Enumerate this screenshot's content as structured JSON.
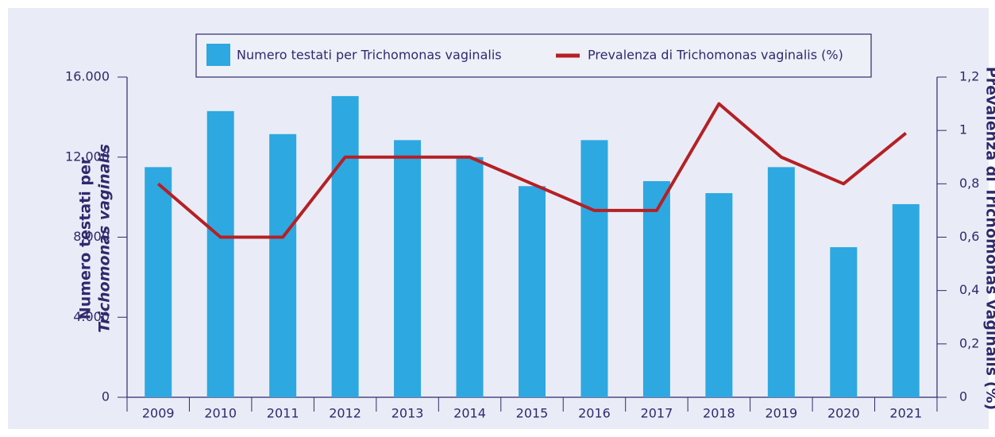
{
  "chart_data": {
    "type": "bar_line",
    "categories": [
      "2009",
      "2010",
      "2011",
      "2012",
      "2013",
      "2014",
      "2015",
      "2016",
      "2017",
      "2018",
      "2019",
      "2020",
      "2021"
    ],
    "series": [
      {
        "name": "Numero testati per Trichomonas vaginalis",
        "color": "#2ea8e0",
        "type": "bar",
        "values": [
          11500,
          14300,
          13150,
          15050,
          12850,
          12000,
          10550,
          12850,
          10800,
          10200,
          11500,
          7500,
          9650
        ]
      },
      {
        "name": "Prevalenza di Trichomonas vaginalis (%)",
        "color": "#b52025",
        "type": "line",
        "axis": "y2",
        "values": [
          0.8,
          0.6,
          0.6,
          0.9,
          0.9,
          0.9,
          0.8,
          0.7,
          0.7,
          1.1,
          0.9,
          0.8,
          0.99
        ]
      }
    ],
    "y_label": [
      "Numero testati per",
      "Trichomonas vaginalis"
    ],
    "y2_label": "Prevalenza di Trichomonas vaginalis (%)",
    "ylim": [
      0,
      16000
    ],
    "yticks": [
      0,
      {
        "value": 4000,
        "label": "4.000"
      },
      {
        "value": 8000,
        "label": "8.000"
      },
      {
        "value": 12000,
        "label": "12.000"
      },
      {
        "value": 16000,
        "label": "16.000"
      }
    ],
    "y2lim": [
      0,
      1.2
    ],
    "y2ticks": [
      0,
      {
        "value": 0.2,
        "label": "0,2"
      },
      {
        "value": 0.4,
        "label": "0,4"
      },
      {
        "value": 0.6,
        "label": "0,6"
      },
      {
        "value": 0.8,
        "label": "0,8"
      },
      1,
      {
        "value": 1.2,
        "label": "1,2"
      }
    ]
  }
}
